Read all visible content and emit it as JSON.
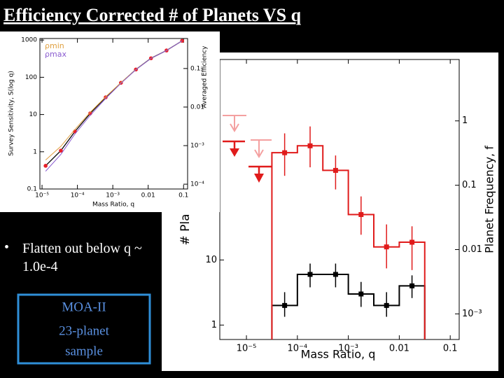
{
  "slide": {
    "title": "Efficiency Corrected # of Planets VS q",
    "bullet": "Flatten out below q ~ 1.0e-4",
    "box": [
      "MOA-II",
      "23-planet",
      "sample"
    ]
  },
  "chart_data": [
    {
      "type": "line",
      "xlabel": "Mass Ratio, q",
      "ylabel": "Survey Sensitivity, S(log q)",
      "y2label": "Averaged Efficiency",
      "log": true,
      "x": [
        1.26e-05,
        3.4e-05,
        8.5e-05,
        0.00023,
        0.00063,
        0.0017,
        0.0045,
        0.012,
        0.033,
        0.091
      ],
      "series": [
        {
          "color": "#000000",
          "marker_color": "#e8202a",
          "values": [
            0.42,
            1.07,
            3.5,
            10.7,
            29,
            71,
            162,
            324,
            525,
            955
          ]
        },
        {
          "name": "ρmin",
          "color": "#e0a040",
          "values": [
            0.6,
            1.4,
            4.0,
            11.5,
            30,
            72,
            162,
            324,
            525,
            955
          ]
        },
        {
          "name": "ρmax",
          "color": "#8a5cd0",
          "values": [
            0.3,
            0.85,
            3.0,
            9.5,
            27,
            69,
            160,
            322,
            524,
            955
          ]
        }
      ],
      "xlim": [
        8.7e-06,
        0.13
      ],
      "ylim": [
        0.1,
        1100
      ],
      "y2lim": [
        7.5e-05,
        0.6
      ],
      "xticks": [
        {
          "value": 1e-05,
          "label": "10⁻⁵"
        },
        {
          "value": 0.0001,
          "label": "10⁻⁴"
        },
        {
          "value": 0.001,
          "label": "10⁻³"
        },
        0.01,
        0.1
      ],
      "yticks": [
        0.1,
        1,
        10,
        100,
        1000
      ],
      "y2ticks": [
        {
          "value": 0.0001,
          "label": "10⁻⁴"
        },
        {
          "value": 0.001,
          "label": "10⁻³"
        },
        0.01,
        0.1
      ]
    },
    {
      "type": "histogram",
      "xlabel": "Mass Ratio, q",
      "ylabel": "# Pla",
      "y2label": "Planet Frequency, f",
      "log": true,
      "bins": [
        3.16e-05,
        0.0001,
        0.000316,
        0.001,
        0.00316,
        0.01,
        0.0316
      ],
      "series": [
        {
          "color": "#000000",
          "values": [
            2,
            6,
            6,
            3,
            2,
            4
          ],
          "y_low": [
            1.34,
            3.8,
            3.8,
            1.9,
            1.34,
            2.6
          ],
          "y_high": [
            3.2,
            8.8,
            8.8,
            4.6,
            3.2,
            5.8
          ]
        },
        {
          "color": "#e01b1b",
          "axis": "y2",
          "values": [
            0.32,
            0.41,
            0.17,
            0.035,
            0.011,
            0.013
          ],
          "y_low": [
            0.14,
            0.19,
            0.086,
            0.017,
            0.0051,
            0.0048
          ],
          "y_high": [
            0.64,
            0.82,
            0.29,
            0.067,
            0.0246,
            0.023
          ]
        }
      ],
      "xlim": [
        3e-06,
        0.15
      ],
      "ylim": [
        0.6,
        12000
      ],
      "y2lim": [
        0.0004,
        9
      ],
      "xticks": [
        {
          "value": 1e-05,
          "label": "10⁻⁵"
        },
        {
          "value": 0.0001,
          "label": "10⁻⁴"
        },
        {
          "value": 0.001,
          "label": "10⁻³"
        },
        0.01,
        0.1
      ],
      "yticks": [
        1,
        10
      ],
      "y2ticks": [
        1,
        0.1,
        0.01,
        {
          "value": 0.001,
          "label": "10⁻³"
        }
      ]
    }
  ]
}
